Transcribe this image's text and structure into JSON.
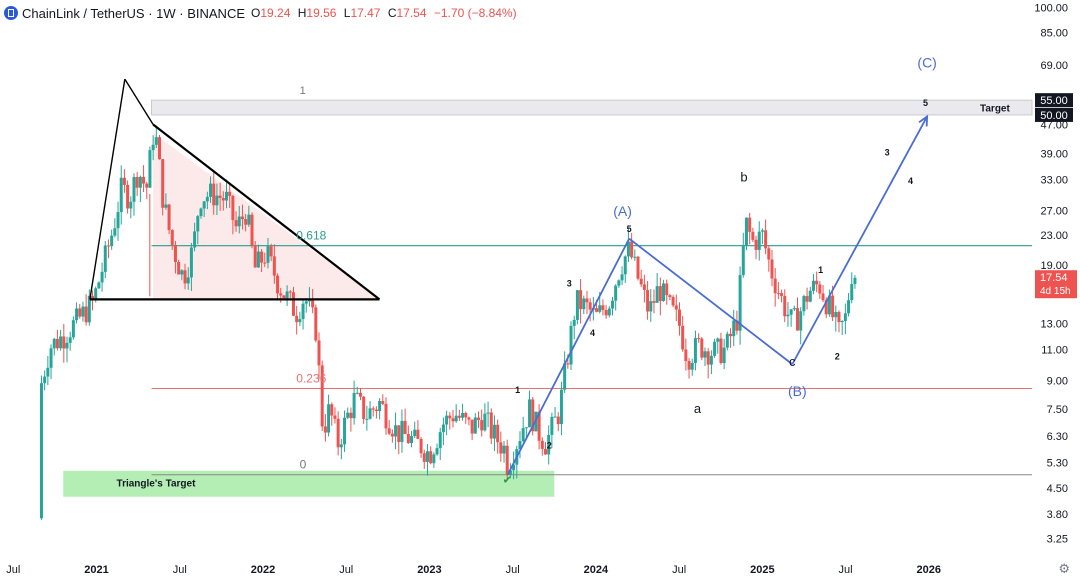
{
  "header": {
    "symbol": "ChainLink / TetherUS · 1W · BINANCE",
    "open_label": "O",
    "open": "19.24",
    "high_label": "H",
    "high": "19.56",
    "low_label": "L",
    "low": "17.47",
    "close_label": "C",
    "close": "17.54",
    "change": "−1.70 (−8.84%)"
  },
  "price_badge": {
    "price": "17.54",
    "countdown": "4d 15h",
    "value": 17.54
  },
  "level_badges": [
    {
      "label": "55.00",
      "value": 55
    },
    {
      "label": "50.00",
      "value": 50
    }
  ],
  "colors": {
    "up": "#26a69a",
    "down": "#ef5350",
    "wave": "#4a6cd4",
    "triangle": "#000000",
    "fib_0618": "#2a9d8f",
    "fib_0236": "#e57373",
    "target_box": "#9be89b"
  },
  "chart_data": {
    "type": "candlestick",
    "title": "ChainLink / TetherUS · 1W · BINANCE",
    "y_scale": "log",
    "ylim": [
      2.9,
      105
    ],
    "y_ticks": [
      {
        "label": "100.00",
        "value": 100
      },
      {
        "label": "85.00",
        "value": 85
      },
      {
        "label": "69.00",
        "value": 69
      },
      {
        "label": "47.00",
        "value": 47
      },
      {
        "label": "39.00",
        "value": 39
      },
      {
        "label": "33.00",
        "value": 33
      },
      {
        "label": "27.00",
        "value": 27
      },
      {
        "label": "23.00",
        "value": 23
      },
      {
        "label": "19.00",
        "value": 19
      },
      {
        "label": "13.00",
        "value": 13
      },
      {
        "label": "11.00",
        "value": 11
      },
      {
        "label": "9.00",
        "value": 9
      },
      {
        "label": "7.50",
        "value": 7.5
      },
      {
        "label": "6.30",
        "value": 6.3
      },
      {
        "label": "5.30",
        "value": 5.3
      },
      {
        "label": "4.50",
        "value": 4.5
      },
      {
        "label": "3.80",
        "value": 3.8
      },
      {
        "label": "3.25",
        "value": 3.25
      }
    ],
    "x_range": [
      2020.42,
      2026.62
    ],
    "x_ticks": [
      {
        "label": "Jul",
        "t": 2020.5
      },
      {
        "label": "2021",
        "t": 2021.0
      },
      {
        "label": "Jul",
        "t": 2021.5
      },
      {
        "label": "2022",
        "t": 2022.0
      },
      {
        "label": "Jul",
        "t": 2022.5
      },
      {
        "label": "2023",
        "t": 2023.0
      },
      {
        "label": "Jul",
        "t": 2023.5
      },
      {
        "label": "2024",
        "t": 2024.0
      },
      {
        "label": "Jul",
        "t": 2024.5
      },
      {
        "label": "2025",
        "t": 2025.0
      },
      {
        "label": "Jul",
        "t": 2025.5
      },
      {
        "label": "2026",
        "t": 2026.0
      }
    ],
    "price_path": [
      [
        2020.65,
        3.7
      ],
      [
        2020.66,
        8.5
      ],
      [
        2020.72,
        11.2
      ],
      [
        2020.8,
        12.0
      ],
      [
        2020.9,
        13.5
      ],
      [
        2020.98,
        15.0
      ],
      [
        2021.02,
        17.5
      ],
      [
        2021.1,
        24.0
      ],
      [
        2021.15,
        31.0
      ],
      [
        2021.2,
        29.5
      ],
      [
        2021.25,
        35.0
      ],
      [
        2021.3,
        31.0
      ],
      [
        2021.34,
        44.0
      ],
      [
        2021.36,
        42.0
      ],
      [
        2021.4,
        29.0
      ],
      [
        2021.45,
        22.0
      ],
      [
        2021.52,
        17.5
      ],
      [
        2021.58,
        21.0
      ],
      [
        2021.62,
        29.5
      ],
      [
        2021.7,
        30.0
      ],
      [
        2021.78,
        29.0
      ],
      [
        2021.84,
        24.0
      ],
      [
        2021.9,
        27.0
      ],
      [
        2021.95,
        18.5
      ],
      [
        2022.02,
        20.5
      ],
      [
        2022.1,
        16.5
      ],
      [
        2022.2,
        14.0
      ],
      [
        2022.25,
        15.5
      ],
      [
        2022.32,
        12.5
      ],
      [
        2022.36,
        6.5
      ],
      [
        2022.4,
        7.5
      ],
      [
        2022.45,
        6.0
      ],
      [
        2022.5,
        7.0
      ],
      [
        2022.55,
        8.0
      ],
      [
        2022.62,
        7.2
      ],
      [
        2022.7,
        7.8
      ],
      [
        2022.8,
        6.5
      ],
      [
        2022.88,
        6.2
      ],
      [
        2022.95,
        5.9
      ],
      [
        2023.0,
        5.6
      ],
      [
        2023.08,
        6.8
      ],
      [
        2023.15,
        7.3
      ],
      [
        2023.25,
        6.6
      ],
      [
        2023.32,
        7.2
      ],
      [
        2023.38,
        6.4
      ],
      [
        2023.45,
        5.8
      ],
      [
        2023.47,
        5.2
      ],
      [
        2023.55,
        6.5
      ],
      [
        2023.6,
        7.5
      ],
      [
        2023.66,
        6.4
      ],
      [
        2023.7,
        6.0
      ],
      [
        2023.78,
        7.4
      ],
      [
        2023.83,
        10.5
      ],
      [
        2023.88,
        15.0
      ],
      [
        2023.94,
        14.5
      ],
      [
        2024.0,
        13.5
      ],
      [
        2024.08,
        15.0
      ],
      [
        2024.15,
        19.0
      ],
      [
        2024.2,
        21.0
      ],
      [
        2024.26,
        17.0
      ],
      [
        2024.32,
        14.0
      ],
      [
        2024.38,
        16.5
      ],
      [
        2024.42,
        15.0
      ],
      [
        2024.5,
        13.0
      ],
      [
        2024.55,
        10.5
      ],
      [
        2024.62,
        11.3
      ],
      [
        2024.7,
        10.8
      ],
      [
        2024.78,
        11.0
      ],
      [
        2024.85,
        13.5
      ],
      [
        2024.9,
        25.0
      ],
      [
        2024.94,
        22.0
      ],
      [
        2025.0,
        23.0
      ],
      [
        2025.05,
        18.5
      ],
      [
        2025.12,
        15.0
      ],
      [
        2025.18,
        13.0
      ],
      [
        2025.22,
        13.8
      ],
      [
        2025.28,
        16.0
      ],
      [
        2025.34,
        16.8
      ],
      [
        2025.4,
        14.5
      ],
      [
        2025.46,
        12.2
      ],
      [
        2025.5,
        13.5
      ],
      [
        2025.54,
        18.5
      ],
      [
        2025.57,
        17.5
      ]
    ],
    "annotations": {
      "fib_1": {
        "label": "1",
        "value": 50
      },
      "fib_0618": {
        "label": "0.618",
        "value": 21.5
      },
      "fib_0236": {
        "label": "0.236",
        "value": 8.55
      },
      "fib_0": {
        "label": "0",
        "value": 4.9
      },
      "target_label": "Target",
      "triangle_target": "Triangle's Target",
      "wave_labels": [
        {
          "label": "1",
          "t": 2023.53,
          "v": 8.3,
          "style": "small"
        },
        {
          "label": "2",
          "t": 2023.72,
          "v": 5.8,
          "style": "small"
        },
        {
          "label": "3",
          "t": 2023.84,
          "v": 16.5,
          "style": "small"
        },
        {
          "label": "4",
          "t": 2023.98,
          "v": 12.0,
          "style": "small"
        },
        {
          "label": "5",
          "t": 2024.2,
          "v": 23.5,
          "style": "small"
        },
        {
          "label": "(A)",
          "t": 2024.16,
          "v": 26.0,
          "style": "wave"
        },
        {
          "label": "a",
          "t": 2024.61,
          "v": 7.3,
          "style": "letter"
        },
        {
          "label": "b",
          "t": 2024.89,
          "v": 32.5,
          "style": "letter"
        },
        {
          "label": "c",
          "t": 2025.18,
          "v": 9.9,
          "style": "letter"
        },
        {
          "label": "(B)",
          "t": 2025.21,
          "v": 8.15,
          "style": "wave"
        },
        {
          "label": "1",
          "t": 2025.35,
          "v": 18.0,
          "style": "small"
        },
        {
          "label": "2",
          "t": 2025.45,
          "v": 10.3,
          "style": "small"
        },
        {
          "label": "3",
          "t": 2025.75,
          "v": 38.5,
          "style": "small"
        },
        {
          "label": "4",
          "t": 2025.89,
          "v": 32.0,
          "style": "small"
        },
        {
          "label": "5",
          "t": 2025.98,
          "v": 53.0,
          "style": "small"
        },
        {
          "label": "(C)",
          "t": 2025.99,
          "v": 68.0,
          "style": "wave"
        }
      ]
    }
  }
}
